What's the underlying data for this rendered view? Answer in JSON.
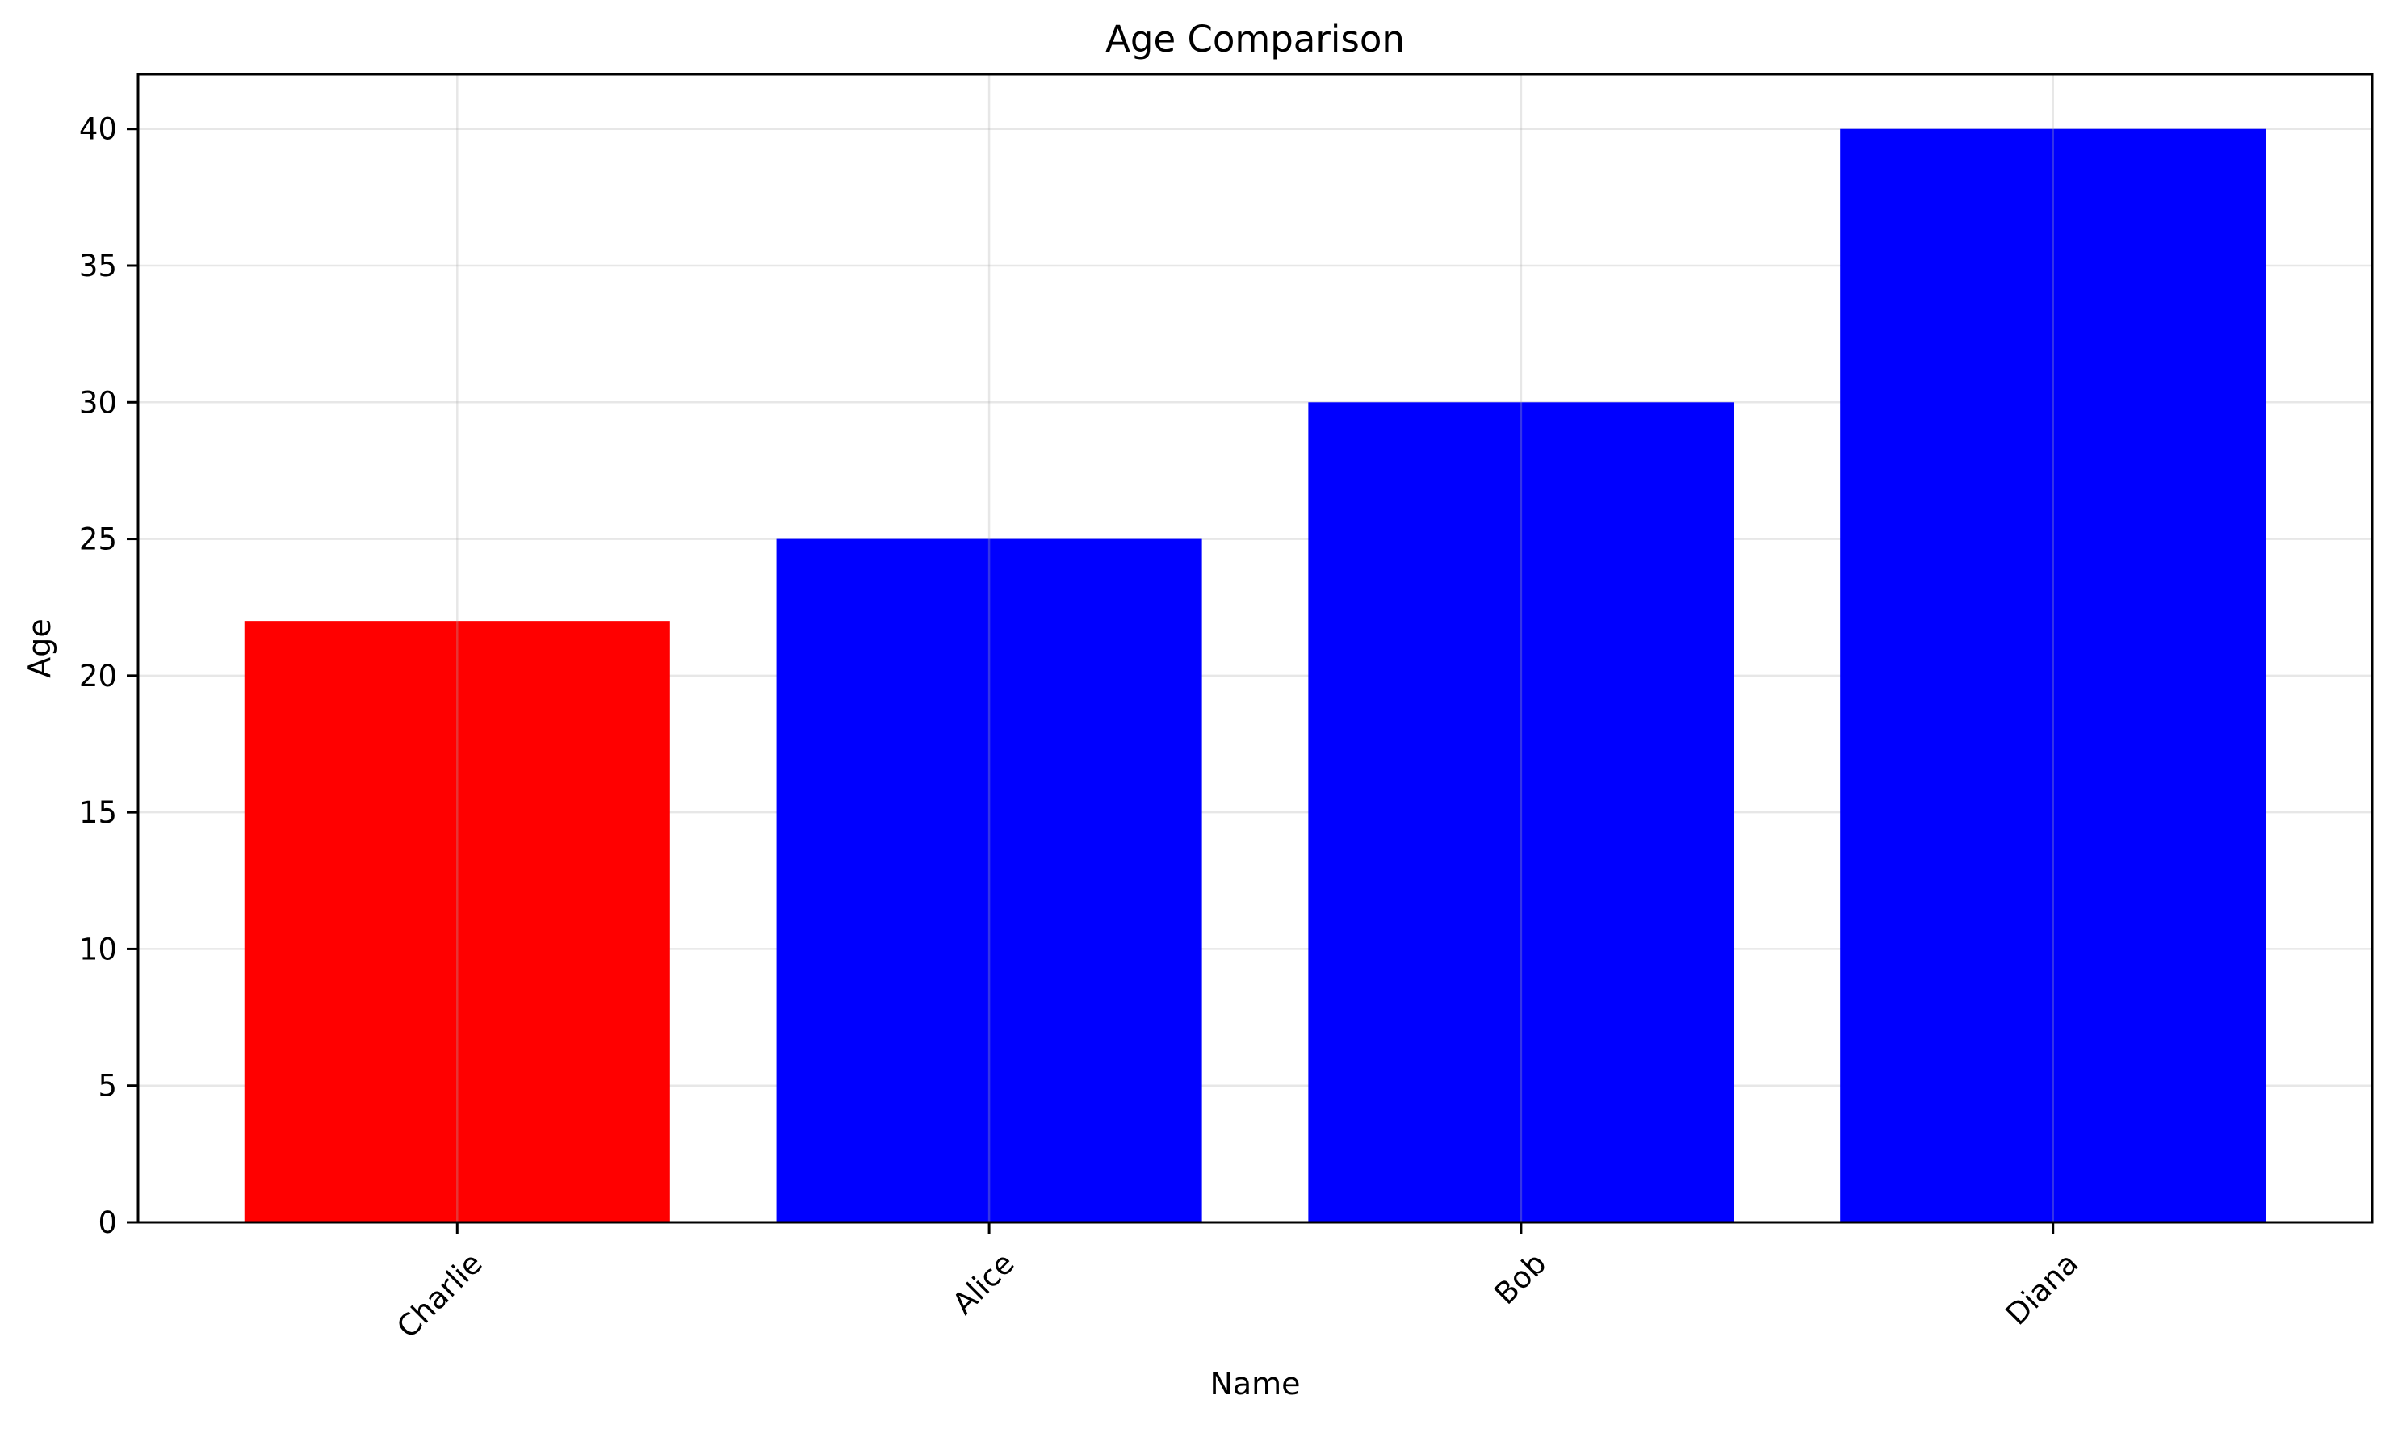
{
  "chart_data": {
    "type": "bar",
    "title": "Age Comparison",
    "xlabel": "Name",
    "ylabel": "Age",
    "categories": [
      "Charlie",
      "Alice",
      "Bob",
      "Diana"
    ],
    "values": [
      22,
      25,
      30,
      40
    ],
    "bar_colors": [
      "#ff0000",
      "#0000ff",
      "#0000ff",
      "#0000ff"
    ],
    "ylim": [
      0,
      42
    ],
    "yticks": [
      0,
      5,
      10,
      15,
      20,
      25,
      30,
      35,
      40
    ],
    "ytick_labels": [
      "0",
      "5",
      "10",
      "15",
      "20",
      "25",
      "30",
      "35",
      "40"
    ],
    "xtick_rotation": 45,
    "grid": true,
    "legend": null
  }
}
